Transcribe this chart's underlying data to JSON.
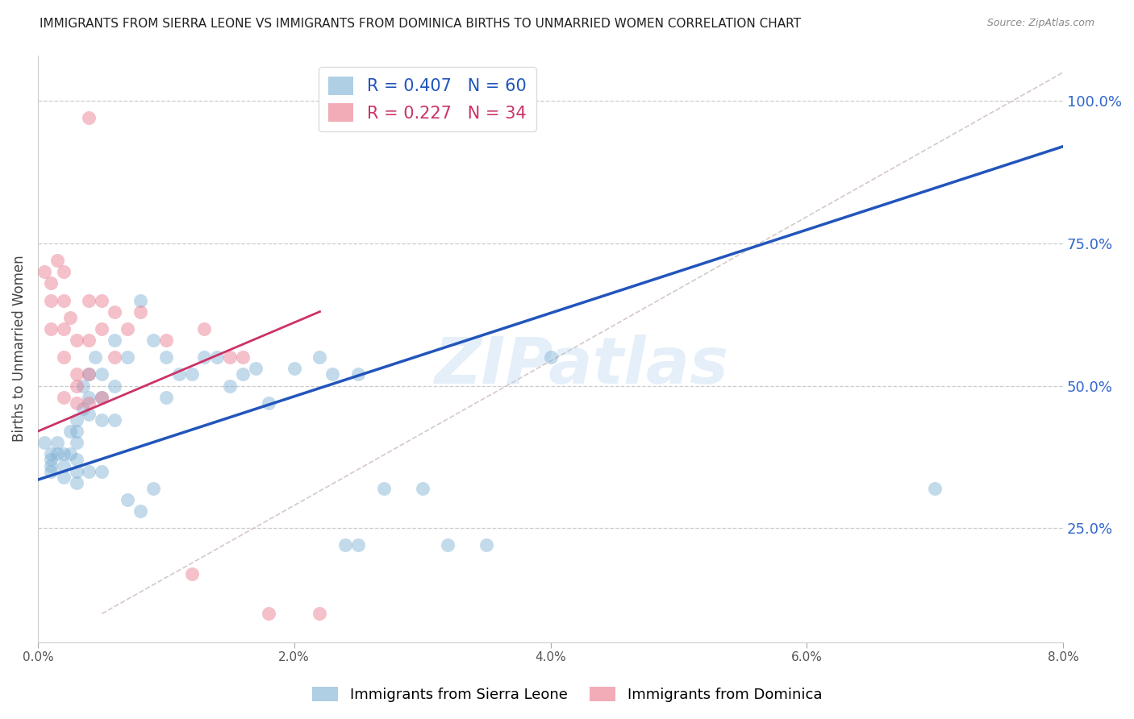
{
  "title": "IMMIGRANTS FROM SIERRA LEONE VS IMMIGRANTS FROM DOMINICA BIRTHS TO UNMARRIED WOMEN CORRELATION CHART",
  "source": "Source: ZipAtlas.com",
  "ylabel_left": "Births to Unmarried Women",
  "legend_label_blue": "Immigrants from Sierra Leone",
  "legend_label_pink": "Immigrants from Dominica",
  "r_blue": 0.407,
  "n_blue": 60,
  "r_pink": 0.227,
  "n_pink": 34,
  "xlim": [
    0.0,
    0.08
  ],
  "ylim": [
    0.05,
    1.08
  ],
  "xticks": [
    0.0,
    0.02,
    0.04,
    0.06,
    0.08
  ],
  "xtick_labels": [
    "0.0%",
    "2.0%",
    "4.0%",
    "6.0%",
    "8.0%"
  ],
  "yticks_right": [
    0.25,
    0.5,
    0.75,
    1.0
  ],
  "ytick_labels_right": [
    "25.0%",
    "50.0%",
    "75.0%",
    "100.0%"
  ],
  "blue_color": "#7bafd4",
  "pink_color": "#e8758a",
  "watermark_text": "ZIPatlas",
  "blue_scatter_x": [
    0.0005,
    0.001,
    0.001,
    0.001,
    0.001,
    0.0015,
    0.0015,
    0.002,
    0.002,
    0.002,
    0.0025,
    0.0025,
    0.003,
    0.003,
    0.003,
    0.003,
    0.003,
    0.003,
    0.0035,
    0.0035,
    0.004,
    0.004,
    0.004,
    0.004,
    0.0045,
    0.005,
    0.005,
    0.005,
    0.005,
    0.006,
    0.006,
    0.006,
    0.007,
    0.007,
    0.008,
    0.008,
    0.009,
    0.009,
    0.01,
    0.01,
    0.011,
    0.012,
    0.013,
    0.014,
    0.015,
    0.016,
    0.017,
    0.018,
    0.02,
    0.022,
    0.023,
    0.024,
    0.025,
    0.025,
    0.027,
    0.03,
    0.032,
    0.035,
    0.04,
    0.07
  ],
  "blue_scatter_y": [
    0.4,
    0.37,
    0.38,
    0.36,
    0.35,
    0.4,
    0.38,
    0.38,
    0.36,
    0.34,
    0.42,
    0.38,
    0.44,
    0.42,
    0.4,
    0.37,
    0.35,
    0.33,
    0.5,
    0.46,
    0.52,
    0.48,
    0.45,
    0.35,
    0.55,
    0.52,
    0.48,
    0.44,
    0.35,
    0.58,
    0.5,
    0.44,
    0.55,
    0.3,
    0.65,
    0.28,
    0.58,
    0.32,
    0.55,
    0.48,
    0.52,
    0.52,
    0.55,
    0.55,
    0.5,
    0.52,
    0.53,
    0.47,
    0.53,
    0.55,
    0.52,
    0.22,
    0.52,
    0.22,
    0.32,
    0.32,
    0.22,
    0.22,
    0.55,
    0.32
  ],
  "pink_scatter_x": [
    0.0005,
    0.001,
    0.001,
    0.001,
    0.0015,
    0.002,
    0.002,
    0.002,
    0.002,
    0.002,
    0.0025,
    0.003,
    0.003,
    0.003,
    0.003,
    0.004,
    0.004,
    0.004,
    0.004,
    0.005,
    0.005,
    0.005,
    0.006,
    0.006,
    0.007,
    0.008,
    0.01,
    0.012,
    0.013,
    0.015,
    0.016,
    0.018,
    0.022,
    0.004
  ],
  "pink_scatter_y": [
    0.7,
    0.68,
    0.65,
    0.6,
    0.72,
    0.7,
    0.65,
    0.6,
    0.55,
    0.48,
    0.62,
    0.58,
    0.52,
    0.5,
    0.47,
    0.65,
    0.58,
    0.52,
    0.47,
    0.65,
    0.6,
    0.48,
    0.55,
    0.63,
    0.6,
    0.63,
    0.58,
    0.17,
    0.6,
    0.55,
    0.55,
    0.1,
    0.1,
    0.97
  ],
  "blue_line_x": [
    0.0,
    0.08
  ],
  "blue_line_y": [
    0.335,
    0.92
  ],
  "pink_line_x": [
    0.0,
    0.022
  ],
  "pink_line_y": [
    0.42,
    0.63
  ],
  "ref_line_x": [
    0.005,
    0.08
  ],
  "ref_line_y": [
    0.1,
    1.05
  ],
  "grid_yticks": [
    0.25,
    0.5,
    0.75,
    1.0
  ]
}
